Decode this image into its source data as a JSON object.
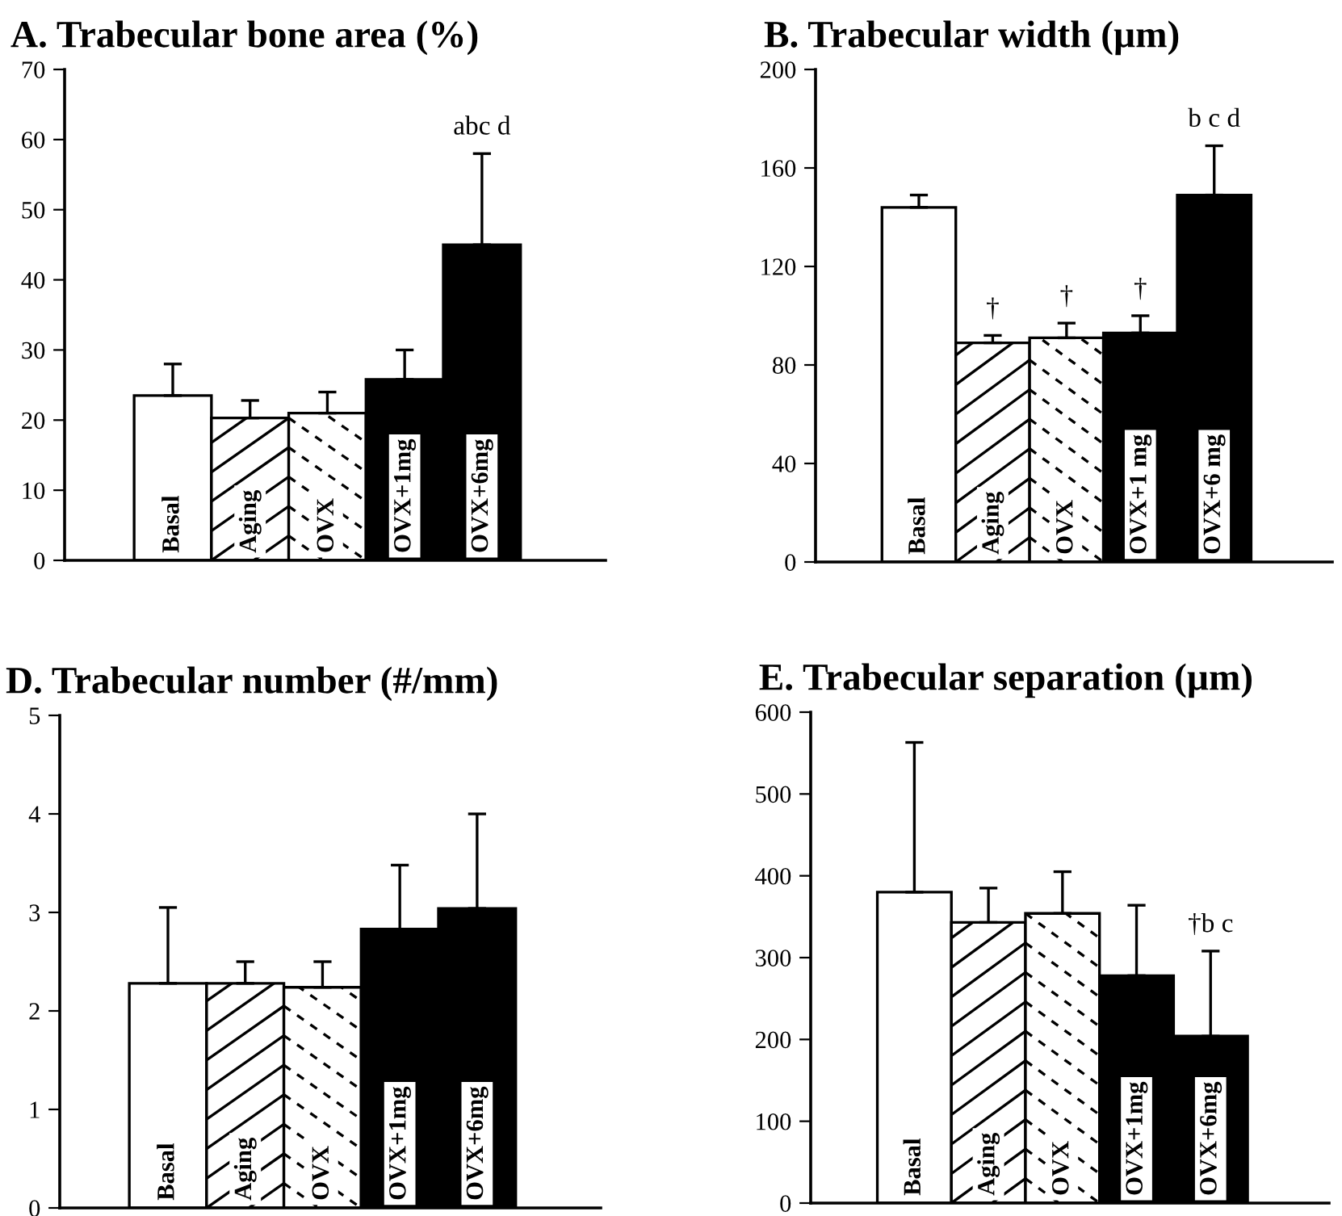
{
  "chart_data": [
    {
      "type": "bar",
      "title": "A. Trabecular bone area (%)",
      "categories": [
        "Basal",
        "Aging",
        "OVX",
        "OVX+1mg",
        "OVX+6mg"
      ],
      "values": [
        23.5,
        20.3,
        21,
        25.8,
        45
      ],
      "errors": [
        [
          23.5,
          28
        ],
        [
          20.3,
          22.8
        ],
        [
          21,
          24
        ],
        [
          25.8,
          30
        ],
        [
          45,
          58
        ]
      ],
      "colors": [
        "#ffffff",
        "#ffffff",
        "#ffffff",
        "#000000",
        "#000000"
      ],
      "ylim": [
        0,
        70
      ],
      "yticks": [
        0,
        10,
        20,
        30,
        40,
        50,
        60,
        70
      ],
      "grid": false,
      "annotations": [
        {
          "text": "abc d",
          "x": "OVX+6mg",
          "y": 58
        }
      ]
    },
    {
      "type": "bar",
      "title": "B. Trabecular width (µm)",
      "categories": [
        "Basal",
        "Aging",
        "OVX",
        "OVX+1 mg",
        "OVX+6 mg"
      ],
      "values": [
        144,
        89,
        91,
        93,
        149
      ],
      "errors": [
        [
          144,
          149
        ],
        [
          89,
          92
        ],
        [
          91,
          97
        ],
        [
          93,
          100
        ],
        [
          149,
          169
        ]
      ],
      "colors": [
        "#ffffff",
        "#ffffff",
        "#ffffff",
        "#000000",
        "#000000"
      ],
      "ylim": [
        0,
        200
      ],
      "yticks": [
        0,
        40,
        80,
        120,
        160,
        200
      ],
      "grid": false,
      "annotations": [
        {
          "text": "†",
          "x": "Aging",
          "y": 92
        },
        {
          "text": "†",
          "x": "OVX",
          "y": 97
        },
        {
          "text": "†",
          "x": "OVX+1 mg",
          "y": 100
        },
        {
          "text": "b c d",
          "x": "OVX+6 mg",
          "y": 169
        }
      ]
    },
    {
      "type": "bar",
      "title": "D. Trabecular number (#/mm)",
      "categories": [
        "Basal",
        "Aging",
        "OVX",
        "OVX+1mg",
        "OVX+6mg"
      ],
      "values": [
        2.28,
        2.28,
        2.24,
        2.83,
        3.04
      ],
      "errors": [
        [
          2.28,
          3.05
        ],
        [
          2.28,
          2.5
        ],
        [
          2.24,
          2.5
        ],
        [
          2.83,
          3.48
        ],
        [
          3.04,
          4.0
        ]
      ],
      "colors": [
        "#ffffff",
        "#ffffff",
        "#ffffff",
        "#000000",
        "#000000"
      ],
      "ylim": [
        0,
        5
      ],
      "yticks": [
        0,
        1,
        2,
        3,
        4,
        5
      ],
      "grid": false
    },
    {
      "type": "bar",
      "title": "E. Trabecular separation (µm)",
      "categories": [
        "Basal",
        "Aging",
        "OVX",
        "OVX+1mg",
        "OVX+6mg"
      ],
      "values": [
        380,
        343,
        354,
        278,
        204
      ],
      "errors": [
        [
          380,
          563
        ],
        [
          343,
          385
        ],
        [
          354,
          405
        ],
        [
          278,
          364
        ],
        [
          204,
          308
        ]
      ],
      "colors": [
        "#ffffff",
        "#ffffff",
        "#ffffff",
        "#000000",
        "#000000"
      ],
      "ylim": [
        0,
        600
      ],
      "yticks": [
        0,
        100,
        200,
        300,
        400,
        500,
        600
      ],
      "grid": false,
      "annotations": [
        {
          "text": "†b c",
          "x": "OVX+6mg",
          "y": 308
        }
      ]
    }
  ]
}
